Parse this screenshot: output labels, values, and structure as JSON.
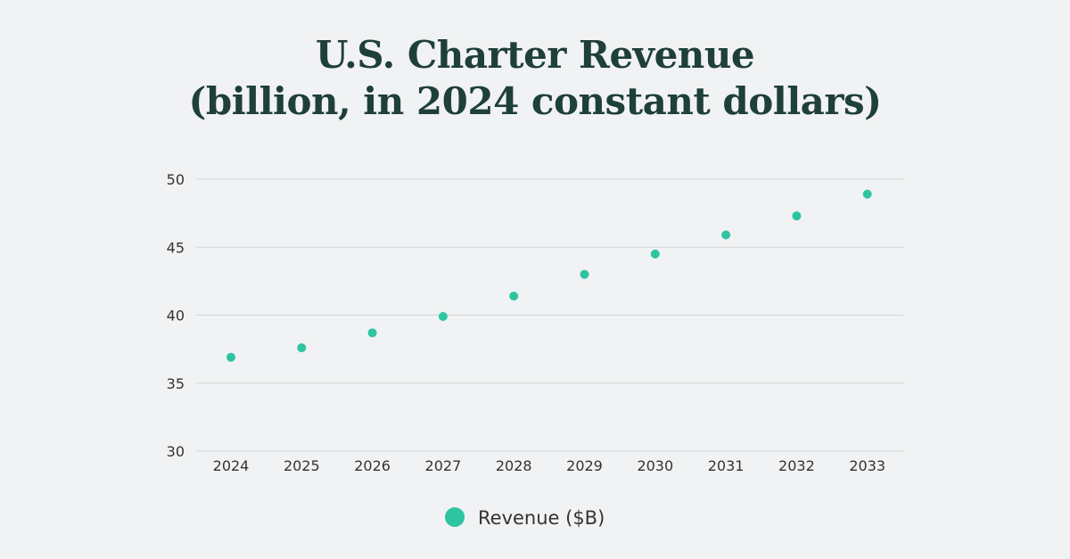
{
  "chart_data": {
    "type": "scatter",
    "title": "U.S. Charter Revenue",
    "subtitle": "(billion, in 2024 constant dollars)",
    "xlabel": "",
    "ylabel": "",
    "categories": [
      "2024",
      "2025",
      "2026",
      "2027",
      "2028",
      "2029",
      "2030",
      "2031",
      "2032",
      "2033"
    ],
    "series": [
      {
        "name": "Revenue ($B)",
        "values": [
          36.9,
          37.6,
          38.7,
          39.9,
          41.4,
          43.0,
          44.5,
          45.9,
          47.3,
          48.9
        ]
      }
    ],
    "ylim": [
      30,
      50
    ],
    "yticks": [
      30,
      35,
      40,
      45,
      50
    ],
    "grid": true,
    "legend_position": "bottom-center",
    "colors": {
      "title": "#1f3f3a",
      "point": "#2ec4a0",
      "grid": "#cfd2d4",
      "tick_text": "#333333",
      "background": "#f1f2f3"
    }
  }
}
